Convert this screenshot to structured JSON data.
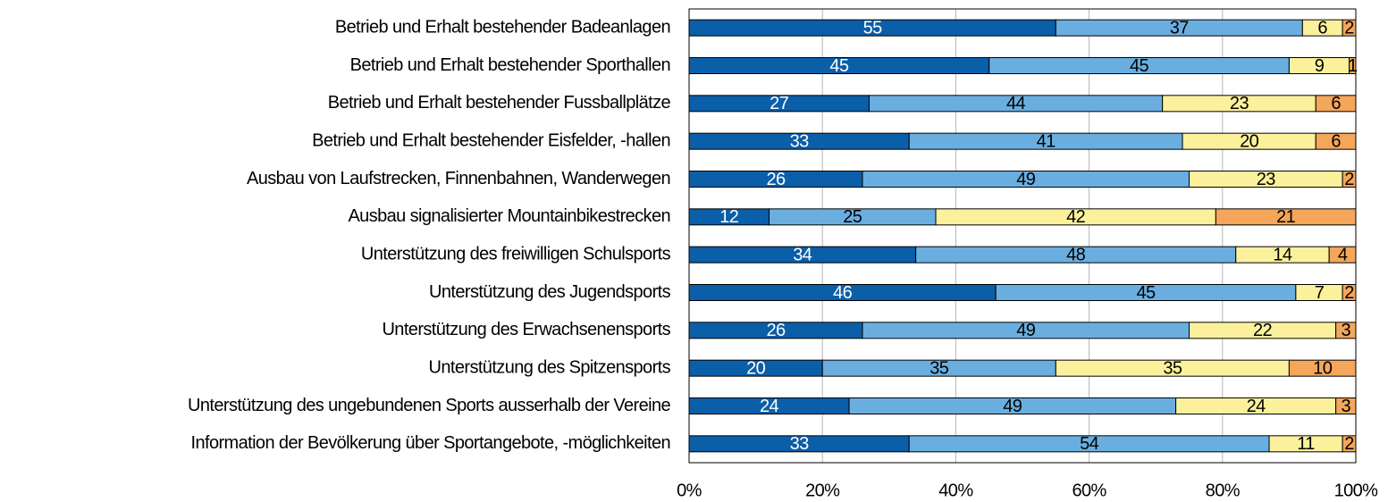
{
  "chart_data": {
    "type": "stacked_barh",
    "categories": [
      "Betrieb und Erhalt bestehender Badeanlagen",
      "Betrieb und Erhalt bestehender Sporthallen",
      "Betrieb und Erhalt bestehender Fussballplätze",
      "Betrieb und Erhalt bestehender Eisfelder, -hallen",
      "Ausbau von Laufstrecken, Finnenbahnen, Wanderwegen",
      "Ausbau signalisierter Mountainbikestrecken",
      "Unterstützung des freiwilligen Schulsports",
      "Unterstützung des Jugendsports",
      "Unterstützung des Erwachsenensports",
      "Unterstützung des Spitzensports",
      "Unterstützung des ungebundenen Sports ausserhalb der Vereine",
      "Information der Bevölkerung über Sportangebote, -möglichkeiten"
    ],
    "series": [
      {
        "color": "#0b5ea8",
        "label_color": "#ffffff",
        "values": [
          55,
          45,
          27,
          33,
          26,
          12,
          34,
          46,
          26,
          20,
          24,
          33
        ]
      },
      {
        "color": "#6aaee0",
        "label_color": "#000000",
        "values": [
          37,
          45,
          44,
          41,
          49,
          25,
          48,
          45,
          49,
          35,
          49,
          54
        ]
      },
      {
        "color": "#fbf19c",
        "label_color": "#000000",
        "values": [
          6,
          9,
          23,
          20,
          23,
          42,
          14,
          7,
          22,
          35,
          24,
          11
        ]
      },
      {
        "color": "#f4a65a",
        "label_color": "#000000",
        "values": [
          2,
          1,
          6,
          6,
          2,
          21,
          4,
          2,
          3,
          10,
          3,
          2
        ]
      }
    ],
    "xlim": [
      0,
      100
    ],
    "xticks": [
      {
        "value": 0,
        "label": "0%"
      },
      {
        "value": 20,
        "label": "20%"
      },
      {
        "value": 40,
        "label": "40%"
      },
      {
        "value": 60,
        "label": "60%"
      },
      {
        "value": 80,
        "label": "80%"
      },
      {
        "value": 100,
        "label": "100%"
      }
    ],
    "grid": true
  }
}
